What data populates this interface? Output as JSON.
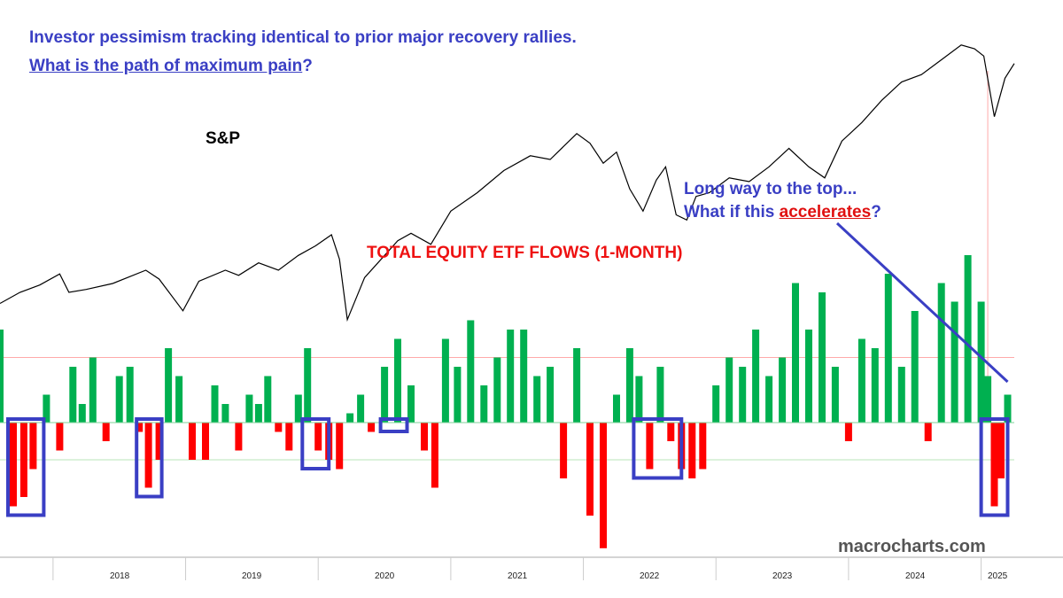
{
  "headline": {
    "line1": "Investor pessimism tracking identical to prior major recovery rallies.",
    "line2_underlined": "What is the path of maximum pain",
    "line2_tail": "?"
  },
  "watermark": "macrocharts.com",
  "colors": {
    "headline": "#3a3fc4",
    "price_line": "#000000",
    "positive_flow": "#00b050",
    "negative_flow": "#ff0000",
    "highlight_box": "#3a3fc4",
    "upper_ref_line": "#ffaaaa",
    "lower_ref_line": "#b8e6b8"
  },
  "chart_data": [
    {
      "type": "line",
      "series_label": "S&P",
      "x_ticks": [
        "2018",
        "2019",
        "2020",
        "2021",
        "2022",
        "2023",
        "2024",
        "2025"
      ],
      "x_range": [
        2017.6,
        2025.25
      ],
      "x": [
        2017.6,
        2017.75,
        2017.9,
        2018.05,
        2018.12,
        2018.25,
        2018.45,
        2018.7,
        2018.8,
        2018.98,
        2019.1,
        2019.3,
        2019.4,
        2019.55,
        2019.7,
        2019.85,
        2019.98,
        2020.1,
        2020.16,
        2020.22,
        2020.35,
        2020.45,
        2020.6,
        2020.7,
        2020.85,
        2021.0,
        2021.2,
        2021.4,
        2021.6,
        2021.75,
        2021.95,
        2022.05,
        2022.15,
        2022.25,
        2022.35,
        2022.45,
        2022.55,
        2022.62,
        2022.7,
        2022.78,
        2022.85,
        2022.95,
        2023.1,
        2023.25,
        2023.4,
        2023.55,
        2023.7,
        2023.82,
        2023.95,
        2024.1,
        2024.25,
        2024.4,
        2024.55,
        2024.7,
        2024.85,
        2024.95,
        2025.02,
        2025.1,
        2025.18,
        2025.25
      ],
      "y": [
        2450,
        2600,
        2700,
        2850,
        2600,
        2640,
        2720,
        2900,
        2780,
        2350,
        2750,
        2900,
        2830,
        3000,
        2900,
        3100,
        3230,
        3380,
        3050,
        2230,
        2800,
        3000,
        3300,
        3400,
        3250,
        3700,
        3950,
        4250,
        4450,
        4400,
        4750,
        4620,
        4350,
        4500,
        4000,
        3700,
        4120,
        4300,
        3650,
        3580,
        3900,
        3950,
        4150,
        4100,
        4300,
        4550,
        4300,
        4150,
        4650,
        4900,
        5200,
        5450,
        5550,
        5750,
        5950,
        5900,
        5800,
        4980,
        5500,
        5700
      ],
      "y_range": [
        2000,
        6200
      ]
    },
    {
      "type": "bar",
      "title": "TOTAL EQUITY ETF FLOWS (1-MONTH)",
      "x_range": [
        2017.6,
        2025.25
      ],
      "y_range": [
        -1.35,
        2.5
      ],
      "reference_levels": [
        0.7,
        -0.4
      ],
      "x": [
        2017.6,
        2017.7,
        2017.78,
        2017.85,
        2017.95,
        2018.05,
        2018.15,
        2018.22,
        2018.3,
        2018.4,
        2018.5,
        2018.58,
        2018.65,
        2018.72,
        2018.8,
        2018.87,
        2018.95,
        2019.05,
        2019.15,
        2019.22,
        2019.3,
        2019.4,
        2019.48,
        2019.55,
        2019.62,
        2019.7,
        2019.78,
        2019.85,
        2019.92,
        2020.0,
        2020.08,
        2020.16,
        2020.24,
        2020.32,
        2020.4,
        2020.5,
        2020.6,
        2020.7,
        2020.8,
        2020.88,
        2020.96,
        2021.05,
        2021.15,
        2021.25,
        2021.35,
        2021.45,
        2021.55,
        2021.65,
        2021.75,
        2021.85,
        2021.95,
        2022.05,
        2022.15,
        2022.25,
        2022.35,
        2022.42,
        2022.5,
        2022.58,
        2022.66,
        2022.74,
        2022.82,
        2022.9,
        2023.0,
        2023.1,
        2023.2,
        2023.3,
        2023.4,
        2023.5,
        2023.6,
        2023.7,
        2023.8,
        2023.9,
        2024.0,
        2024.1,
        2024.2,
        2024.3,
        2024.4,
        2024.5,
        2024.6,
        2024.7,
        2024.8,
        2024.9,
        2025.0,
        2025.05,
        2025.1,
        2025.15,
        2025.2
      ],
      "values": [
        1.0,
        -0.9,
        -0.8,
        -0.5,
        0.3,
        -0.3,
        0.6,
        0.2,
        0.7,
        -0.2,
        0.5,
        0.6,
        -0.1,
        -0.7,
        -0.4,
        0.8,
        0.5,
        -0.4,
        -0.4,
        0.4,
        0.2,
        -0.3,
        0.3,
        0.2,
        0.5,
        -0.1,
        -0.3,
        0.3,
        0.8,
        -0.3,
        -0.4,
        -0.5,
        0.1,
        0.3,
        -0.1,
        0.6,
        0.9,
        0.4,
        -0.3,
        -0.7,
        0.9,
        0.6,
        1.1,
        0.4,
        0.7,
        1.0,
        1.0,
        0.5,
        0.6,
        -0.6,
        0.8,
        -1.0,
        -1.35,
        0.3,
        0.8,
        0.5,
        -0.5,
        0.6,
        -0.2,
        -0.5,
        -0.6,
        -0.5,
        0.4,
        0.7,
        0.6,
        1.0,
        0.5,
        0.7,
        1.5,
        1.0,
        1.4,
        0.6,
        -0.2,
        0.9,
        0.8,
        1.6,
        0.6,
        1.2,
        -0.2,
        1.5,
        1.3,
        1.8,
        1.3,
        0.5,
        -0.9,
        -0.6,
        0.3
      ],
      "highlights": [
        {
          "x0": 2017.66,
          "x1": 2017.93
        },
        {
          "x0": 2018.63,
          "x1": 2018.82
        },
        {
          "x0": 2019.88,
          "x1": 2020.08
        },
        {
          "x0": 2020.47,
          "x1": 2020.67
        },
        {
          "x0": 2022.38,
          "x1": 2022.74
        },
        {
          "x0": 2025.0,
          "x1": 2025.2
        }
      ]
    }
  ],
  "labels": {
    "sp": "S&P",
    "flows": "TOTAL EQUITY ETF FLOWS (1-MONTH)",
    "annot_line1": "Long way to the top...",
    "annot_line2_pre": "What if this ",
    "annot_line2_red": "accelerates",
    "annot_line2_tail": "?"
  }
}
